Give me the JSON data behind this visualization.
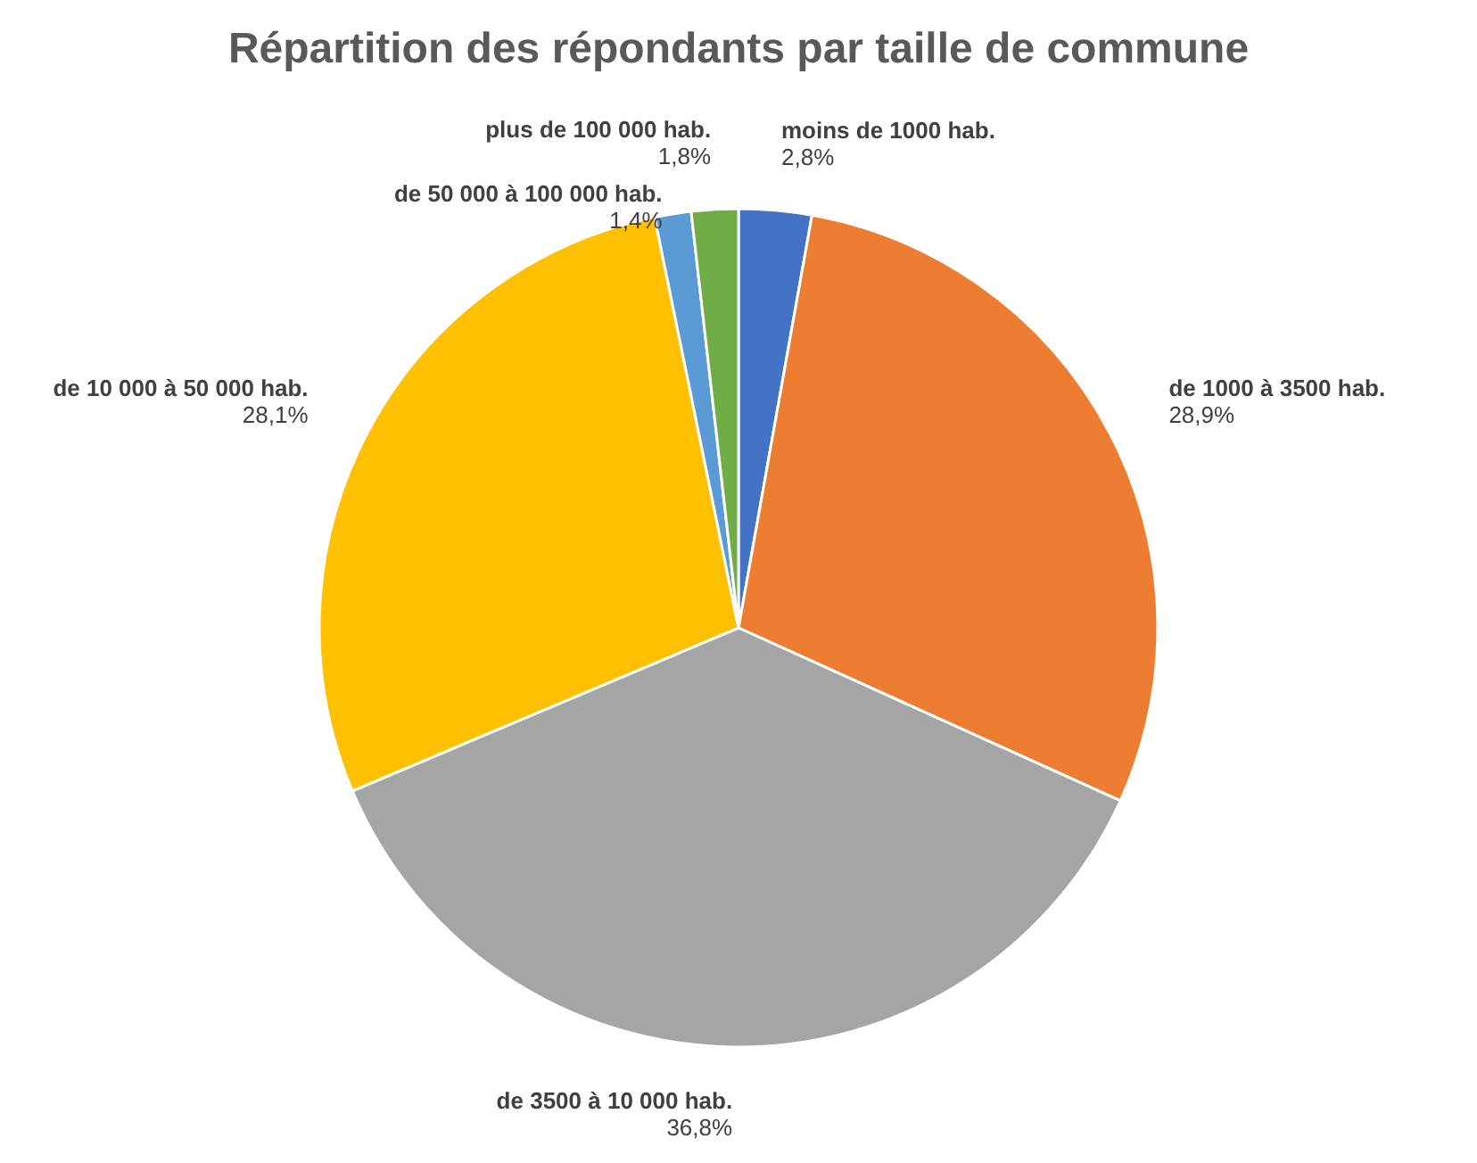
{
  "chart_data": {
    "type": "pie",
    "title": "Répartition des répondants par taille de commune",
    "categories": [
      "moins de 1000 hab.",
      "de 1000 à 3500 hab.",
      "de 3500 à 10 000 hab.",
      "de 10 000 à 50 000 hab.",
      "de 50 000 à 100 000 hab.",
      "plus de 100 000 hab."
    ],
    "values": [
      2.8,
      28.9,
      36.8,
      28.1,
      1.4,
      1.8
    ],
    "colors": [
      "#4472c4",
      "#ed7d31",
      "#a5a5a5",
      "#ffc000",
      "#5b9bd5",
      "#70ad47"
    ],
    "value_labels": [
      "2,8%",
      "28,9%",
      "36,8%",
      "28,1%",
      "1,4%",
      "1,8%"
    ]
  }
}
